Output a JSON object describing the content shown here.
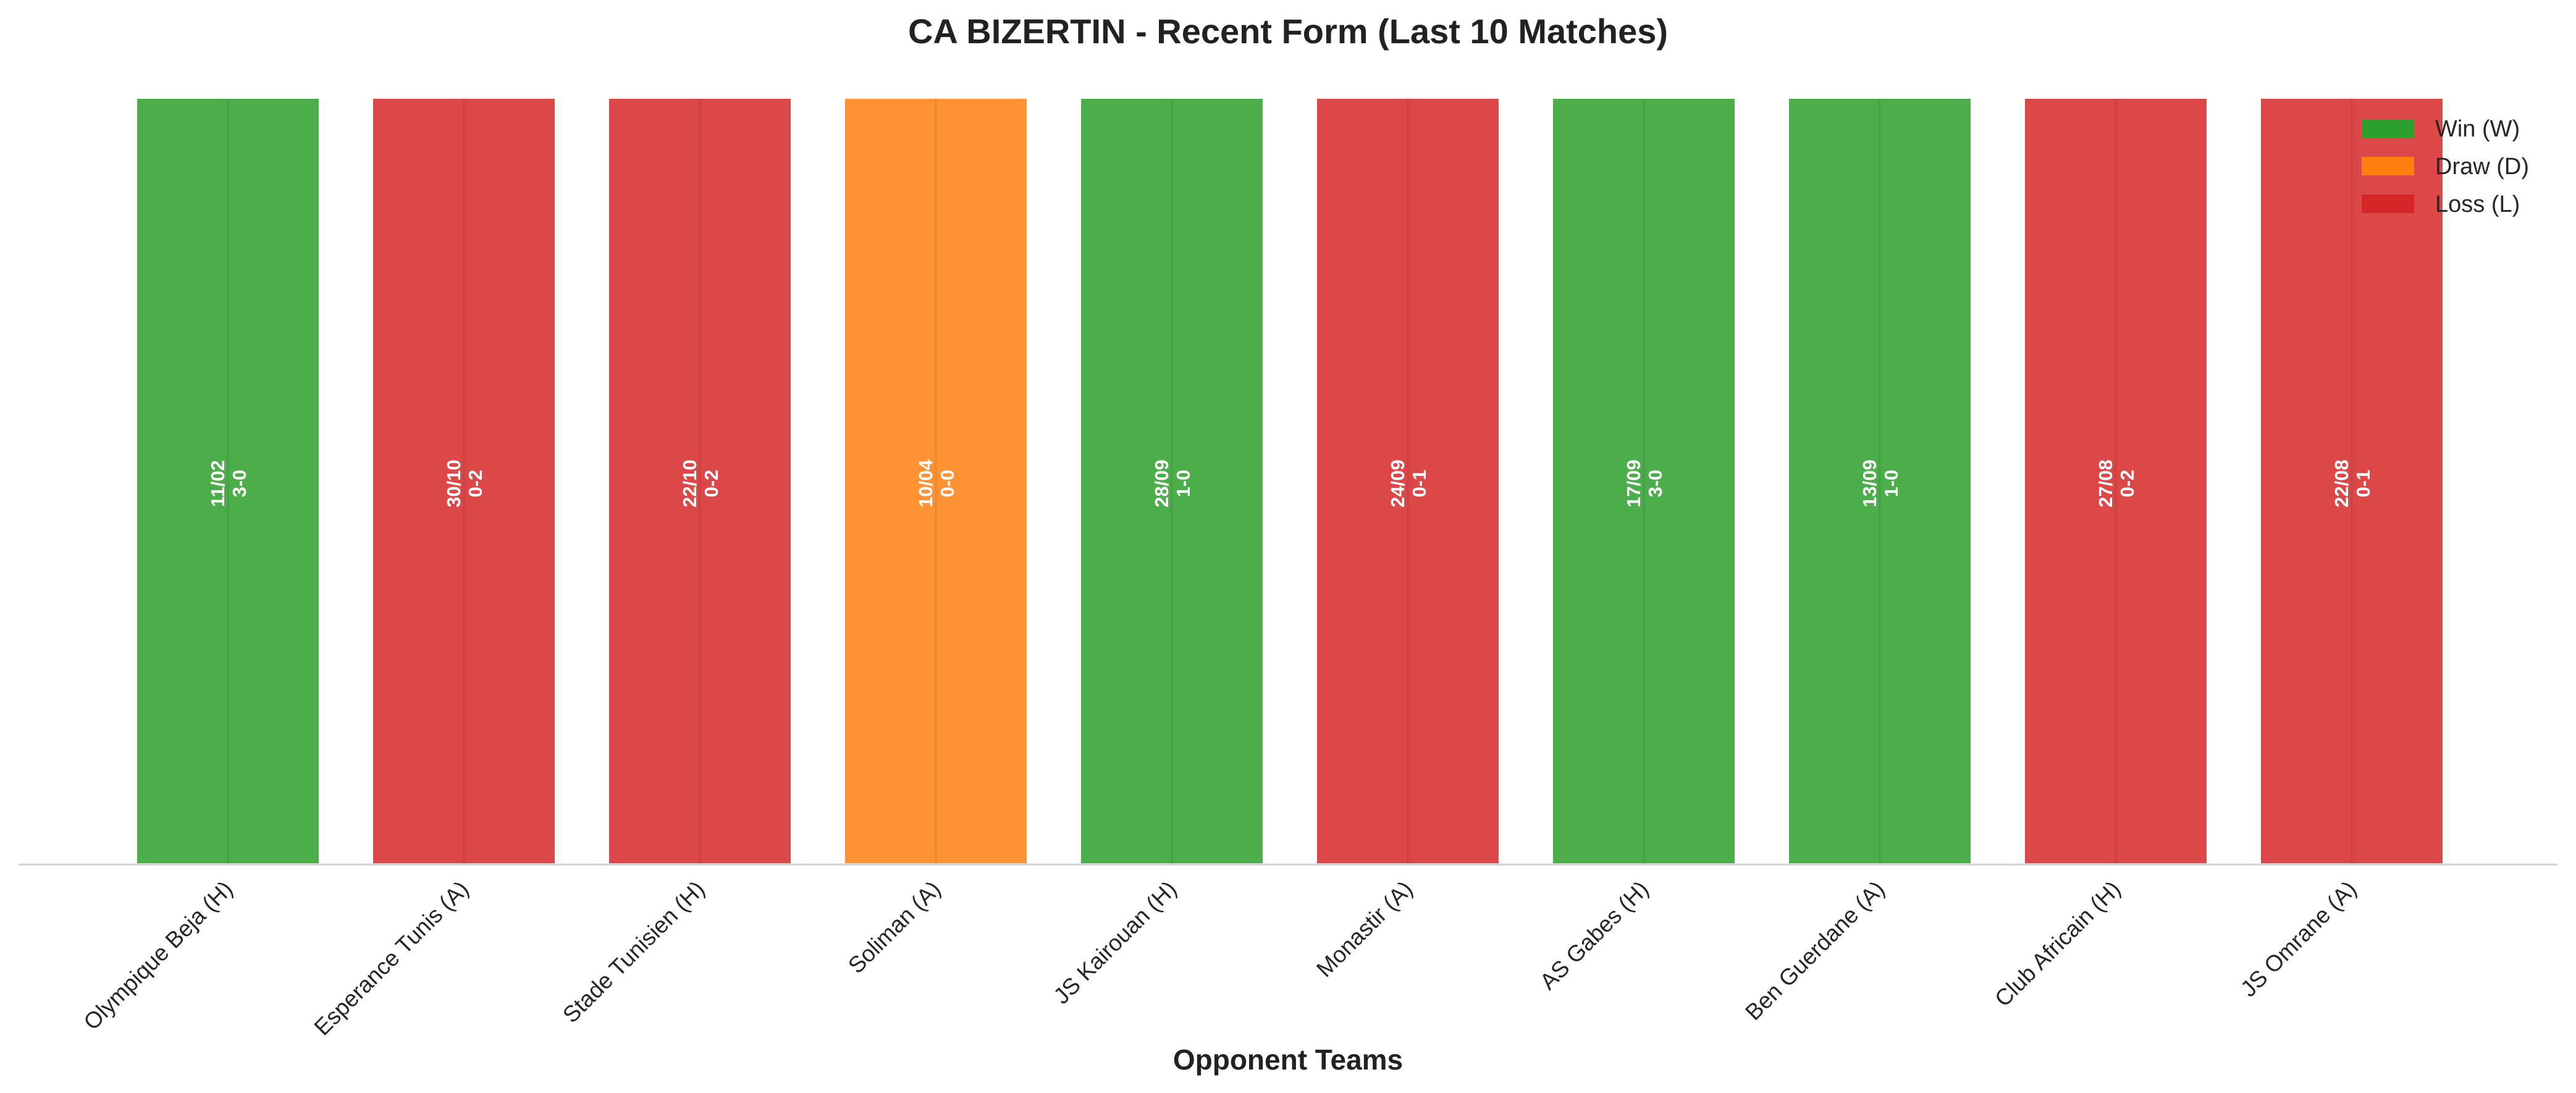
{
  "chart_data": {
    "type": "bar",
    "title": "CA BIZERTIN - Recent Form (Last 10 Matches)",
    "xlabel": "Opponent Teams",
    "ylabel": "",
    "categories": [
      "Olympique Beja (H)",
      "Esperance Tunis (A)",
      "Stade Tunisien (H)",
      "Soliman (A)",
      "JS Kairouan (H)",
      "Monastir (A)",
      "AS Gabes (H)",
      "Ben Guerdane (A)",
      "Club Africain (H)",
      "JS Omrane (A)"
    ],
    "values": [
      1,
      1,
      1,
      1,
      1,
      1,
      1,
      1,
      1,
      1
    ],
    "results": [
      "W",
      "L",
      "L",
      "D",
      "W",
      "L",
      "W",
      "W",
      "L",
      "L"
    ],
    "dates": [
      "11/02",
      "30/10",
      "22/10",
      "10/04",
      "28/09",
      "24/09",
      "17/09",
      "13/09",
      "27/08",
      "22/08"
    ],
    "scores": [
      "3-0",
      "0-2",
      "0-2",
      "0-0",
      "1-0",
      "0-1",
      "3-0",
      "1-0",
      "0-2",
      "0-1"
    ],
    "ylim": [
      0,
      1
    ],
    "grid": false,
    "legend_position": "top-right",
    "legend": [
      {
        "key": "W",
        "label": "Win (W)",
        "color": "#2ca02c"
      },
      {
        "key": "D",
        "label": "Draw (D)",
        "color": "#ff7f0e"
      },
      {
        "key": "L",
        "label": "Loss (L)",
        "color": "#d62728"
      }
    ]
  }
}
